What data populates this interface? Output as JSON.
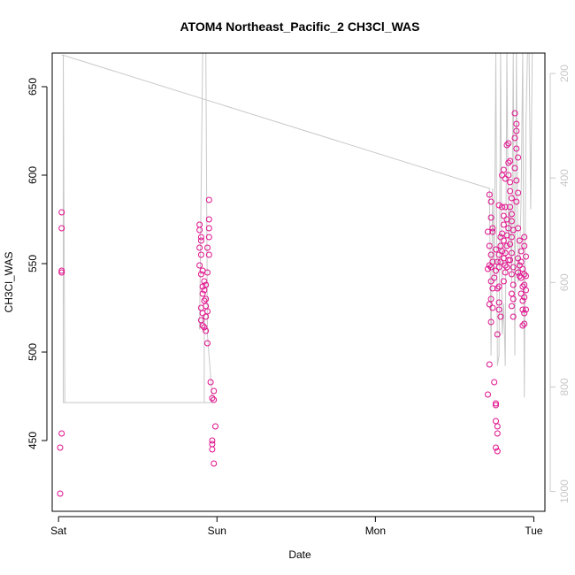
{
  "chart_data": {
    "type": "scatter",
    "title": "ATOM4 Northeast_Pacific_2 CH3Cl_WAS",
    "xlabel": "Date",
    "ylabel": "CH3Cl_WAS",
    "x_ticks": [
      "Sat",
      "Sun",
      "Mon",
      "Tue"
    ],
    "x_tick_days": [
      0,
      1,
      2,
      3
    ],
    "xlim_days": [
      -0.04,
      3.07
    ],
    "ylim": [
      410,
      669
    ],
    "y_ticks": [
      450,
      500,
      550,
      600,
      650
    ],
    "right_axis": {
      "ticks": [
        200,
        400,
        600,
        800,
        1000
      ],
      "ylim": [
        1038,
        161
      ],
      "reversed": true,
      "color": "#c8c8c8"
    },
    "grid": false,
    "series": [
      {
        "kind": "points",
        "color": "#e0108c",
        "marker": "open-circle",
        "points": [
          [
            0.02,
            579
          ],
          [
            0.02,
            570
          ],
          [
            0.02,
            546
          ],
          [
            0.02,
            545
          ],
          [
            0.02,
            454
          ],
          [
            0.01,
            446
          ],
          [
            0.01,
            420
          ],
          [
            0.89,
            572
          ],
          [
            0.89,
            569
          ],
          [
            0.9,
            565
          ],
          [
            0.9,
            563
          ],
          [
            0.89,
            559
          ],
          [
            0.9,
            555
          ],
          [
            0.89,
            549
          ],
          [
            0.91,
            546
          ],
          [
            0.9,
            544
          ],
          [
            0.92,
            540
          ],
          [
            0.91,
            537
          ],
          [
            0.92,
            535
          ],
          [
            0.91,
            533
          ],
          [
            0.92,
            529
          ],
          [
            0.9,
            525
          ],
          [
            0.91,
            522
          ],
          [
            0.9,
            518
          ],
          [
            0.91,
            515
          ],
          [
            0.93,
            538
          ],
          [
            0.93,
            530
          ],
          [
            0.93,
            526
          ],
          [
            0.94,
            523
          ],
          [
            0.93,
            520
          ],
          [
            0.93,
            512
          ],
          [
            0.94,
            505
          ],
          [
            0.92,
            514
          ],
          [
            0.95,
            586
          ],
          [
            0.95,
            575
          ],
          [
            0.95,
            570
          ],
          [
            0.95,
            565
          ],
          [
            0.94,
            559
          ],
          [
            0.95,
            555
          ],
          [
            0.94,
            545
          ],
          [
            0.96,
            483
          ],
          [
            0.97,
            474
          ],
          [
            0.98,
            473
          ],
          [
            0.98,
            478
          ],
          [
            0.97,
            450
          ],
          [
            0.97,
            448
          ],
          [
            0.97,
            445
          ],
          [
            0.99,
            458
          ],
          [
            0.98,
            437
          ],
          [
            2.72,
            589
          ],
          [
            2.71,
            568
          ],
          [
            2.73,
            585
          ],
          [
            2.73,
            576
          ],
          [
            2.74,
            570
          ],
          [
            2.74,
            568
          ],
          [
            2.72,
            560
          ],
          [
            2.73,
            555
          ],
          [
            2.72,
            549
          ],
          [
            2.71,
            547
          ],
          [
            2.73,
            548
          ],
          [
            2.73,
            540
          ],
          [
            2.74,
            536
          ],
          [
            2.73,
            530
          ],
          [
            2.72,
            527
          ],
          [
            2.74,
            525
          ],
          [
            2.74,
            551
          ],
          [
            2.73,
            517
          ],
          [
            2.72,
            493
          ],
          [
            2.71,
            476
          ],
          [
            2.75,
            483
          ],
          [
            2.76,
            471
          ],
          [
            2.76,
            470
          ],
          [
            2.76,
            461
          ],
          [
            2.77,
            458
          ],
          [
            2.77,
            454
          ],
          [
            2.76,
            446
          ],
          [
            2.77,
            444
          ],
          [
            2.76,
            558
          ],
          [
            2.77,
            551
          ],
          [
            2.76,
            546
          ],
          [
            2.75,
            542
          ],
          [
            2.77,
            536
          ],
          [
            2.77,
            510
          ],
          [
            2.78,
            528
          ],
          [
            2.78,
            524
          ],
          [
            2.79,
            520
          ],
          [
            2.78,
            583
          ],
          [
            2.79,
            565
          ],
          [
            2.79,
            560
          ],
          [
            2.78,
            555
          ],
          [
            2.79,
            551
          ],
          [
            2.78,
            548
          ],
          [
            2.78,
            537
          ],
          [
            2.8,
            582
          ],
          [
            2.81,
            577
          ],
          [
            2.81,
            572
          ],
          [
            2.8,
            567
          ],
          [
            2.81,
            563
          ],
          [
            2.8,
            557
          ],
          [
            2.81,
            553
          ],
          [
            2.82,
            549
          ],
          [
            2.82,
            545
          ],
          [
            2.81,
            540
          ],
          [
            2.8,
            600
          ],
          [
            2.81,
            603
          ],
          [
            2.82,
            598
          ],
          [
            2.82,
            582
          ],
          [
            2.83,
            575
          ],
          [
            2.84,
            570
          ],
          [
            2.83,
            566
          ],
          [
            2.83,
            560
          ],
          [
            2.82,
            556
          ],
          [
            2.84,
            552
          ],
          [
            2.83,
            548
          ],
          [
            2.83,
            617
          ],
          [
            2.84,
            618
          ],
          [
            2.84,
            607
          ],
          [
            2.85,
            608
          ],
          [
            2.84,
            600
          ],
          [
            2.85,
            596
          ],
          [
            2.85,
            591
          ],
          [
            2.86,
            587
          ],
          [
            2.85,
            582
          ],
          [
            2.86,
            578
          ],
          [
            2.86,
            574
          ],
          [
            2.87,
            569
          ],
          [
            2.86,
            565
          ],
          [
            2.85,
            561
          ],
          [
            2.86,
            556
          ],
          [
            2.85,
            552
          ],
          [
            2.87,
            548
          ],
          [
            2.86,
            544
          ],
          [
            2.87,
            538
          ],
          [
            2.86,
            533
          ],
          [
            2.87,
            530
          ],
          [
            2.86,
            526
          ],
          [
            2.87,
            520
          ],
          [
            2.88,
            635
          ],
          [
            2.89,
            629
          ],
          [
            2.89,
            625
          ],
          [
            2.88,
            621
          ],
          [
            2.89,
            615
          ],
          [
            2.9,
            610
          ],
          [
            2.88,
            604
          ],
          [
            2.89,
            597
          ],
          [
            2.9,
            590
          ],
          [
            2.89,
            585
          ],
          [
            2.9,
            570
          ],
          [
            2.91,
            563
          ],
          [
            2.9,
            553
          ],
          [
            2.91,
            549
          ],
          [
            2.9,
            545
          ],
          [
            2.91,
            543
          ],
          [
            2.92,
            557
          ],
          [
            2.92,
            551
          ],
          [
            2.93,
            547
          ],
          [
            2.92,
            542
          ],
          [
            2.93,
            537
          ],
          [
            2.92,
            533
          ],
          [
            2.93,
            529
          ],
          [
            2.93,
            524
          ],
          [
            2.94,
            522
          ],
          [
            2.93,
            515
          ],
          [
            2.94,
            565
          ],
          [
            2.94,
            560
          ],
          [
            2.95,
            554
          ],
          [
            2.94,
            538
          ],
          [
            2.95,
            535
          ],
          [
            2.94,
            531
          ],
          [
            2.95,
            524
          ],
          [
            2.94,
            544
          ],
          [
            2.95,
            543
          ],
          [
            2.94,
            516
          ]
        ]
      },
      {
        "kind": "line",
        "color": "#c8c8c8",
        "axis": "right",
        "points": [
          [
            0.02,
            165
          ],
          [
            0.03,
            165
          ],
          [
            0.03,
            830
          ],
          [
            0.92,
            830
          ],
          [
            0.92,
            660
          ],
          [
            0.89,
            690
          ],
          [
            0.91,
            161
          ],
          [
            0.93,
            161
          ],
          [
            0.94,
            700
          ],
          [
            0.97,
            820
          ],
          [
            0.96,
            830
          ],
          [
            0.97,
            830
          ],
          [
            0.04,
            830
          ],
          [
            0.03,
            165
          ],
          [
            2.72,
            420
          ],
          [
            2.73,
            740
          ],
          [
            2.74,
            420
          ],
          [
            2.75,
            600
          ],
          [
            2.76,
            161
          ],
          [
            2.77,
            760
          ],
          [
            2.78,
            740
          ],
          [
            2.79,
            161
          ],
          [
            2.8,
            700
          ],
          [
            2.81,
            640
          ],
          [
            2.82,
            760
          ],
          [
            2.83,
            161
          ],
          [
            2.84,
            530
          ],
          [
            2.85,
            450
          ],
          [
            2.86,
            600
          ],
          [
            2.87,
            161
          ],
          [
            2.88,
            740
          ],
          [
            2.89,
            161
          ],
          [
            2.9,
            600
          ],
          [
            2.91,
            560
          ],
          [
            2.92,
            440
          ],
          [
            2.93,
            161
          ],
          [
            2.94,
            820
          ],
          [
            2.95,
            300
          ],
          [
            2.96,
            161
          ],
          [
            2.97,
            161
          ],
          [
            2.98,
            460
          ],
          [
            2.99,
            161
          ]
        ]
      }
    ]
  }
}
